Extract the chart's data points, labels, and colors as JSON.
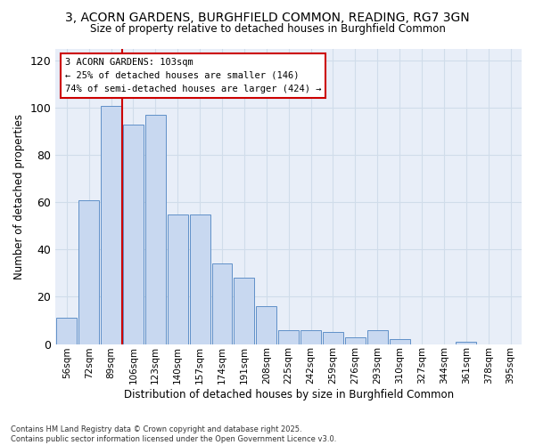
{
  "title_line1": "3, ACORN GARDENS, BURGHFIELD COMMON, READING, RG7 3GN",
  "title_line2": "Size of property relative to detached houses in Burghfield Common",
  "xlabel": "Distribution of detached houses by size in Burghfield Common",
  "ylabel": "Number of detached properties",
  "footer_line1": "Contains HM Land Registry data © Crown copyright and database right 2025.",
  "footer_line2": "Contains public sector information licensed under the Open Government Licence v3.0.",
  "bin_labels": [
    "56sqm",
    "72sqm",
    "89sqm",
    "106sqm",
    "123sqm",
    "140sqm",
    "157sqm",
    "174sqm",
    "191sqm",
    "208sqm",
    "225sqm",
    "242sqm",
    "259sqm",
    "276sqm",
    "293sqm",
    "310sqm",
    "327sqm",
    "344sqm",
    "361sqm",
    "378sqm",
    "395sqm"
  ],
  "values": [
    11,
    61,
    101,
    93,
    97,
    55,
    55,
    34,
    28,
    16,
    6,
    6,
    5,
    3,
    6,
    2,
    0,
    0,
    1,
    0,
    0
  ],
  "bar_color": "#c8d8f0",
  "bar_edge_color": "#6090c8",
  "grid_color": "#d0dcea",
  "plot_bg_color": "#e8eef8",
  "fig_bg_color": "#ffffff",
  "annotation_text": "3 ACORN GARDENS: 103sqm\n← 25% of detached houses are smaller (146)\n74% of semi-detached houses are larger (424) →",
  "vline_color": "#cc0000",
  "annotation_box_edgecolor": "#cc0000",
  "ylim_max": 125,
  "yticks": [
    0,
    20,
    40,
    60,
    80,
    100,
    120
  ]
}
